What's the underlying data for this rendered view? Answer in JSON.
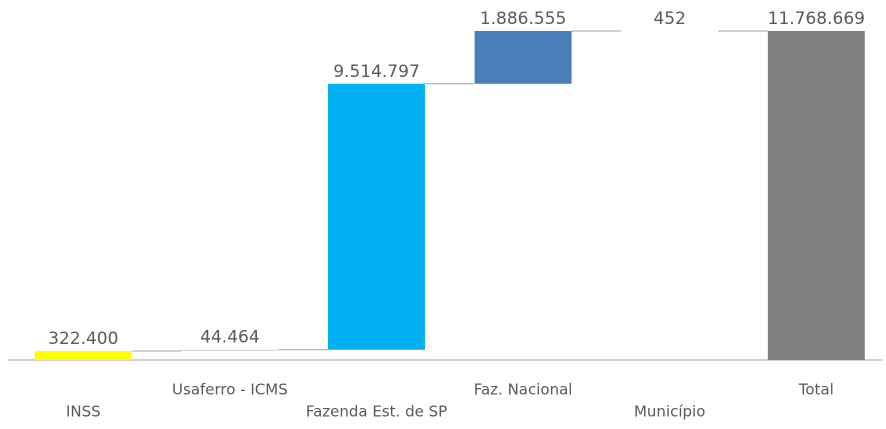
{
  "chart_data": {
    "type": "waterfall",
    "categories": [
      "INSS",
      "Usaferro - ICMS",
      "Fazenda Est. de SP",
      "Faz. Nacional",
      "Município",
      "Total"
    ],
    "values": [
      322400,
      44464,
      9514797,
      1886555,
      452,
      11768669
    ],
    "value_labels": [
      "322.400",
      "44.464",
      "9.514.797",
      "1.886.555",
      "452",
      "11.768.669"
    ],
    "colors": [
      "#ffff00",
      "#d9d9d9",
      "#00b0f0",
      "#4a7ebb",
      "#ffffff",
      "#808080"
    ]
  }
}
